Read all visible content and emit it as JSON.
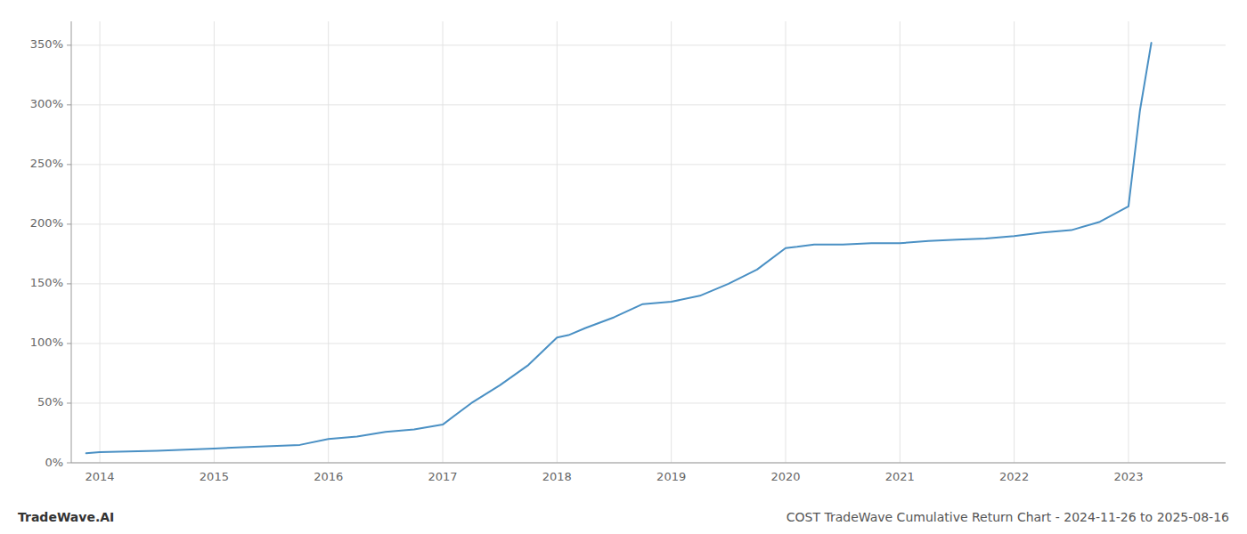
{
  "chart_data": {
    "type": "line",
    "title": "COST TradeWave Cumulative Return Chart - 2024-11-26 to 2025-08-16",
    "annotations": [
      "TradeWave.AI"
    ],
    "x": [
      2013.88,
      2014.0,
      2014.25,
      2014.5,
      2014.75,
      2015.0,
      2015.25,
      2015.5,
      2015.75,
      2016.0,
      2016.25,
      2016.5,
      2016.75,
      2017.0,
      2017.25,
      2017.5,
      2017.75,
      2018.0,
      2018.1,
      2018.25,
      2018.5,
      2018.75,
      2019.0,
      2019.25,
      2019.5,
      2019.75,
      2020.0,
      2020.1,
      2020.25,
      2020.5,
      2020.75,
      2021.0,
      2021.25,
      2021.5,
      2021.75,
      2022.0,
      2022.25,
      2022.5,
      2022.75,
      2023.0,
      2023.1,
      2023.2
    ],
    "values": [
      8,
      9,
      9.5,
      10,
      11,
      12,
      13,
      14,
      15,
      20,
      22,
      26,
      28,
      32,
      50,
      65,
      82,
      105,
      107,
      113,
      122,
      133,
      135,
      140,
      150,
      162,
      180,
      181,
      183,
      183,
      184,
      184,
      186,
      187,
      188,
      190,
      193,
      195,
      202,
      215,
      295,
      352
    ],
    "color": "#4a90c4",
    "xlim": [
      2013.75,
      2023.85
    ],
    "xticks": [
      2014,
      2015,
      2016,
      2017,
      2018,
      2019,
      2020,
      2021,
      2022,
      2023
    ],
    "ylim": [
      0,
      370
    ],
    "yticks": [
      {
        "value": 0,
        "label": "0%"
      },
      {
        "value": 50,
        "label": "50%"
      },
      {
        "value": 100,
        "label": "100%"
      },
      {
        "value": 150,
        "label": "150%"
      },
      {
        "value": 200,
        "label": "200%"
      },
      {
        "value": 250,
        "label": "250%"
      },
      {
        "value": 300,
        "label": "300%"
      },
      {
        "value": 350,
        "label": "350%"
      }
    ],
    "grid": true
  }
}
